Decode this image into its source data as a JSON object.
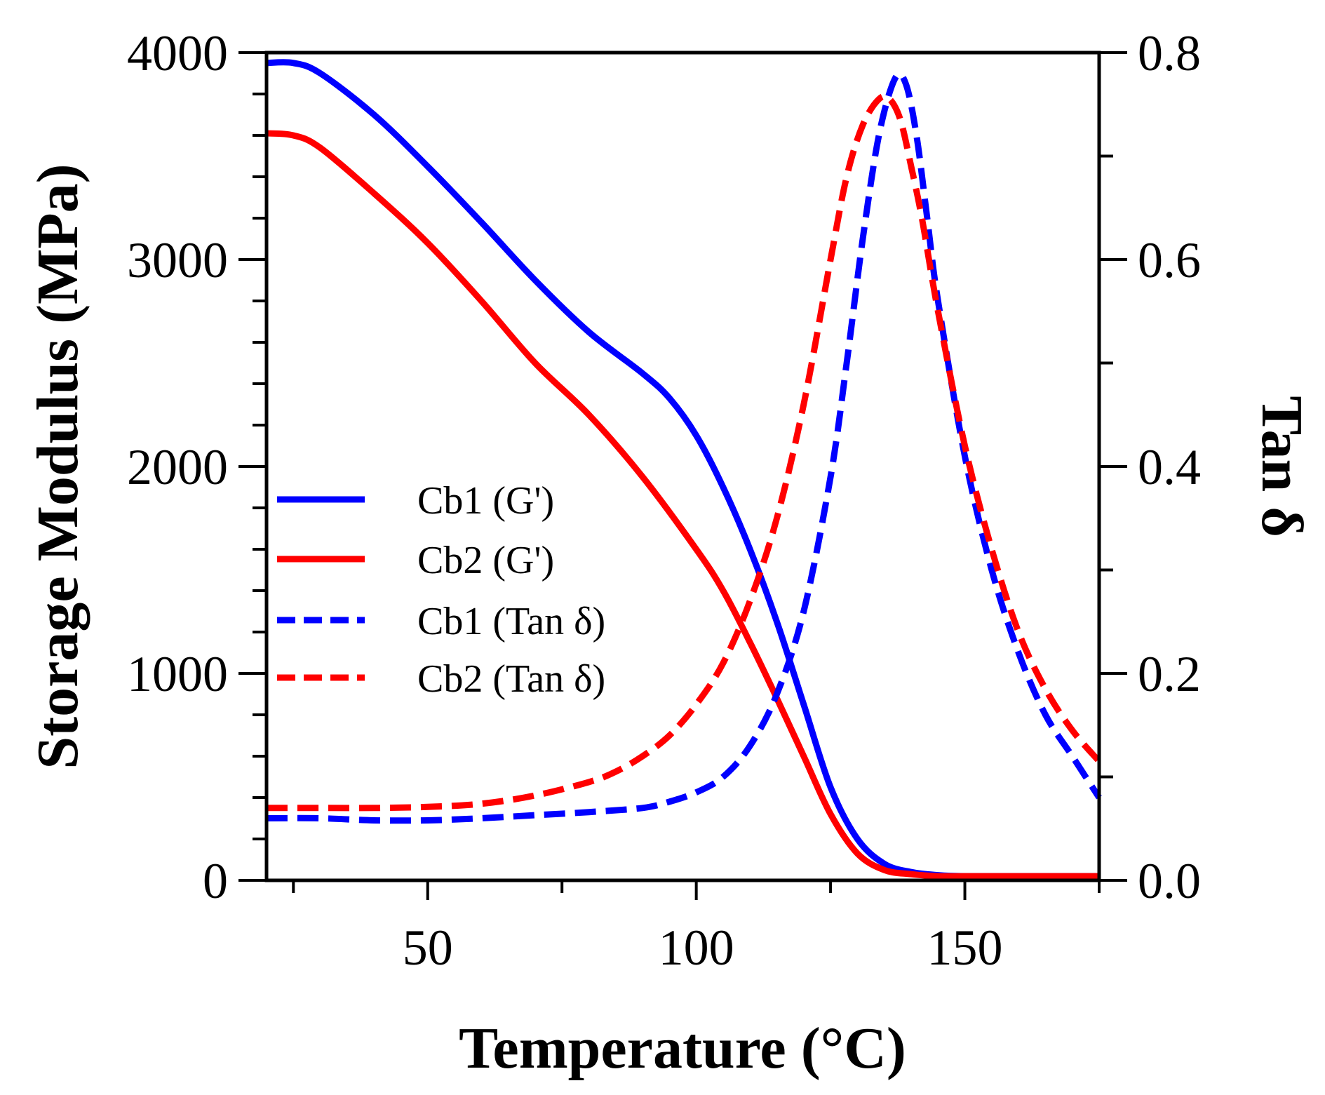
{
  "chart_data": {
    "type": "line",
    "title": "",
    "xlabel": "Temperature (°C)",
    "ylabel_left": "Storage Modulus (MPa)",
    "ylabel_right": "Tan δ",
    "xlim": [
      20,
      175
    ],
    "ylim_left": [
      0,
      4000
    ],
    "ylim_right": [
      0,
      0.8
    ],
    "x_ticks": [
      50,
      100,
      150
    ],
    "x_minor_ticks": [
      25,
      75,
      125,
      175
    ],
    "y_left_ticks": [
      0,
      1000,
      2000,
      3000,
      4000
    ],
    "y_left_minor_step": 200,
    "y_right_ticks": [
      0.0,
      0.2,
      0.4,
      0.6,
      0.8
    ],
    "y_right_tick_labels": [
      "0.0",
      "0.2",
      "0.4",
      "0.6",
      "0.8"
    ],
    "y_right_minor_ticks": [
      0.1,
      0.3,
      0.5,
      0.7
    ],
    "legend_position": "middle-left",
    "series": [
      {
        "name": "Cb1 (G')",
        "axis": "left",
        "color": "#0000ff",
        "style": "solid",
        "x": [
          20,
          25,
          30,
          40,
          50,
          60,
          70,
          80,
          90,
          95,
          100,
          105,
          110,
          115,
          120,
          125,
          130,
          135,
          140,
          145,
          150,
          160,
          175
        ],
        "y": [
          3950,
          3950,
          3900,
          3700,
          3450,
          3180,
          2900,
          2650,
          2450,
          2330,
          2150,
          1900,
          1600,
          1250,
          850,
          450,
          200,
          80,
          40,
          25,
          20,
          20,
          20
        ]
      },
      {
        "name": "Cb2 (G')",
        "axis": "left",
        "color": "#ff0000",
        "style": "solid",
        "x": [
          20,
          25,
          30,
          40,
          50,
          60,
          70,
          80,
          90,
          100,
          105,
          110,
          115,
          120,
          125,
          130,
          135,
          140,
          145,
          150,
          160,
          175
        ],
        "y": [
          3610,
          3600,
          3540,
          3320,
          3080,
          2800,
          2500,
          2250,
          1950,
          1600,
          1400,
          1150,
          880,
          600,
          320,
          130,
          50,
          30,
          20,
          20,
          20,
          20
        ]
      },
      {
        "name": "Cb1 (Tan δ)",
        "axis": "right",
        "color": "#0000ff",
        "style": "dashed",
        "x": [
          20,
          30,
          40,
          50,
          60,
          70,
          80,
          90,
          95,
          100,
          105,
          110,
          115,
          120,
          125,
          128,
          131,
          134,
          137,
          139,
          141,
          143,
          145,
          150,
          155,
          160,
          165,
          170,
          175
        ],
        "y": [
          0.06,
          0.06,
          0.058,
          0.058,
          0.06,
          0.063,
          0.066,
          0.07,
          0.076,
          0.085,
          0.1,
          0.13,
          0.18,
          0.26,
          0.39,
          0.5,
          0.62,
          0.72,
          0.775,
          0.77,
          0.72,
          0.64,
          0.56,
          0.41,
          0.3,
          0.22,
          0.16,
          0.12,
          0.08
        ]
      },
      {
        "name": "Cb2 (Tan δ)",
        "axis": "right",
        "color": "#ff0000",
        "style": "dashed",
        "x": [
          20,
          30,
          40,
          50,
          60,
          70,
          80,
          85,
          90,
          95,
          100,
          105,
          110,
          115,
          120,
          125,
          128,
          131,
          134,
          136,
          138,
          140,
          142,
          145,
          150,
          155,
          160,
          165,
          170,
          175
        ],
        "y": [
          0.07,
          0.07,
          0.07,
          0.071,
          0.074,
          0.082,
          0.095,
          0.105,
          0.12,
          0.14,
          0.17,
          0.21,
          0.27,
          0.35,
          0.46,
          0.6,
          0.68,
          0.73,
          0.755,
          0.755,
          0.735,
          0.69,
          0.64,
          0.55,
          0.42,
          0.32,
          0.24,
          0.185,
          0.145,
          0.115
        ]
      }
    ]
  }
}
